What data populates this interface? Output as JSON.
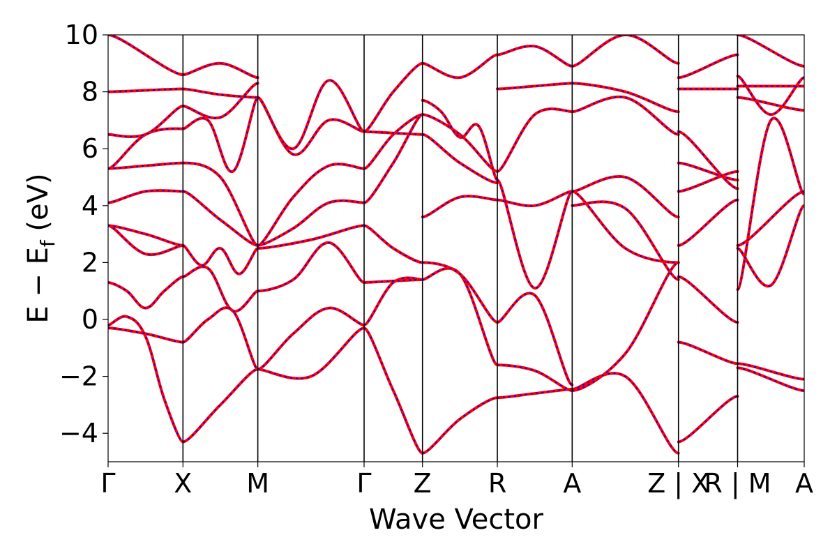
{
  "chart_data": {
    "type": "line",
    "title": "",
    "xlabel": "Wave Vector",
    "ylabel": "E − E_f (eV)",
    "ylabel_parts": {
      "main": "E − E",
      "sub": "f",
      "unit": " (eV)"
    },
    "ylim": [
      -5,
      10
    ],
    "yticks": [
      -4,
      -2,
      0,
      2,
      4,
      6,
      8,
      10
    ],
    "ytick_labels": [
      "−4",
      "−2",
      "0",
      "2",
      "4",
      "6",
      "8",
      "10"
    ],
    "xlim": [
      0,
      9.3
    ],
    "kpoints": [
      {
        "x": 0.0,
        "label": "Γ"
      },
      {
        "x": 1.0,
        "label": "X"
      },
      {
        "x": 2.0,
        "label": "M"
      },
      {
        "x": 3.42,
        "label": "Γ"
      },
      {
        "x": 4.2,
        "label": "Z"
      },
      {
        "x": 5.2,
        "label": "R"
      },
      {
        "x": 6.2,
        "label": "A"
      },
      {
        "x": 7.62,
        "label": "Z | X"
      },
      {
        "x": 8.41,
        "label": "R | M"
      },
      {
        "x": 9.3,
        "label": "A"
      }
    ],
    "x_tick_labels": [
      "Γ",
      "X",
      "M",
      "Γ",
      "Z",
      "R",
      "A",
      "Z | X",
      "R | M",
      "A"
    ],
    "grid": false,
    "legend": "none",
    "series_styles": [
      {
        "color": "#ff0000",
        "dash": "solid",
        "width": 4
      },
      {
        "color": "#0000ff",
        "dash": "dashed",
        "width": 2
      }
    ],
    "segments": [
      {
        "x_range": [
          0.0,
          1.0
        ],
        "bands": [
          [
            -0.3,
            -0.5,
            -0.8
          ],
          [
            -0.2,
            0.1,
            -0.6,
            -2.8,
            -4.3
          ],
          [
            1.3,
            1.0,
            0.4,
            1.0,
            1.5
          ],
          [
            3.3,
            2.3,
            2.6
          ],
          [
            3.3,
            3.0,
            2.6
          ],
          [
            4.1,
            4.5,
            4.5
          ],
          [
            5.3,
            5.4,
            5.5
          ],
          [
            5.3,
            6.5,
            6.7
          ],
          [
            6.5,
            6.5,
            7.5
          ],
          [
            8.0,
            8.1
          ],
          [
            10.0,
            8.6
          ]
        ]
      },
      {
        "x_range": [
          1.0,
          2.0
        ],
        "bands": [
          [
            -4.3,
            -3.0,
            -1.75
          ],
          [
            -0.8,
            0.0,
            0.3,
            -1.75
          ],
          [
            1.5,
            1.8,
            0.3,
            1.0
          ],
          [
            2.6,
            1.9,
            2.5,
            1.6,
            2.5
          ],
          [
            4.5,
            3.5,
            2.6
          ],
          [
            5.5,
            5.0,
            2.6
          ],
          [
            6.7,
            7.0,
            5.2,
            7.8
          ],
          [
            7.5,
            7.1,
            8.3
          ],
          [
            8.1,
            7.9,
            7.8
          ],
          [
            8.6,
            9.0,
            8.5
          ]
        ]
      },
      {
        "x_range": [
          2.0,
          3.42
        ],
        "bands": [
          [
            -1.75,
            -2.0,
            -0.3
          ],
          [
            -1.75,
            -0.5,
            0.4,
            -0.2
          ],
          [
            1.0,
            1.4,
            2.7,
            1.3
          ],
          [
            2.5,
            2.8,
            3.3
          ],
          [
            2.6,
            3.2,
            4.1,
            4.1
          ],
          [
            2.6,
            4.3,
            5.4,
            5.3
          ],
          [
            7.8,
            5.8,
            7.0,
            6.6
          ],
          [
            7.8,
            6.0,
            8.4,
            6.6
          ]
        ]
      },
      {
        "x_range": [
          3.42,
          4.2
        ],
        "bands": [
          [
            -0.3,
            -2.5,
            -4.7
          ],
          [
            -0.2,
            1.3,
            1.4
          ],
          [
            1.3,
            1.35,
            1.4
          ],
          [
            3.3,
            2.5,
            2.0
          ],
          [
            4.1,
            5.5,
            7.2
          ],
          [
            5.3,
            6.5,
            7.2
          ],
          [
            6.6,
            6.55,
            6.5
          ],
          [
            6.6,
            8.0,
            9.0
          ]
        ]
      },
      {
        "x_range": [
          4.2,
          5.2
        ],
        "bands": [
          [
            -4.7,
            -3.5,
            -2.75
          ],
          [
            1.4,
            1.6,
            -1.6
          ],
          [
            2.0,
            1.6,
            -0.1
          ],
          [
            3.6,
            4.3,
            4.2
          ],
          [
            6.5,
            5.5,
            4.8
          ],
          [
            7.2,
            6.5,
            5.2
          ],
          [
            7.7,
            7.3,
            6.4,
            6.8,
            4.9
          ],
          [
            9.0,
            8.5,
            9.3
          ]
        ]
      },
      {
        "x_range": [
          5.2,
          6.2
        ],
        "bands": [
          [
            -2.75,
            -2.6,
            -2.45
          ],
          [
            -1.6,
            -1.8,
            -2.5
          ],
          [
            -0.1,
            0.85,
            -2.3
          ],
          [
            4.2,
            4.0,
            4.5
          ],
          [
            4.9,
            1.1,
            4.5
          ],
          [
            5.2,
            7.2,
            7.3
          ],
          [
            8.1,
            8.2,
            8.3
          ],
          [
            9.3,
            9.6,
            8.9
          ]
        ]
      },
      {
        "x_range": [
          6.2,
          7.62
        ],
        "bands": [
          [
            -2.45,
            -2.0,
            -4.7
          ],
          [
            -2.5,
            -1.2,
            2.0
          ],
          [
            4.5,
            2.5,
            2.0
          ],
          [
            4.5,
            5.0,
            3.6
          ],
          [
            4.0,
            3.9,
            1.4
          ],
          [
            7.3,
            7.8,
            6.5
          ],
          [
            8.3,
            8.0,
            7.3
          ],
          [
            8.9,
            10.0,
            9.0
          ]
        ]
      },
      {
        "x_range": [
          7.62,
          8.41
        ],
        "bands": [
          [
            -4.3,
            -2.7
          ],
          [
            -0.8,
            -1.55
          ],
          [
            1.5,
            -0.1
          ],
          [
            2.6,
            4.2
          ],
          [
            4.5,
            5.2
          ],
          [
            5.5,
            4.9
          ],
          [
            6.6,
            4.6
          ],
          [
            8.1,
            8.1
          ],
          [
            8.5,
            9.3
          ]
        ]
      },
      {
        "x_range": [
          8.41,
          9.3
        ],
        "bands": [
          [
            -1.7,
            -2.5
          ],
          [
            -1.55,
            -2.1
          ],
          [
            1.05,
            7.0,
            4.4
          ],
          [
            2.5,
            1.2,
            4.0
          ],
          [
            2.6,
            4.5
          ],
          [
            7.8,
            7.35
          ],
          [
            8.2,
            8.2
          ],
          [
            8.55,
            7.2,
            8.5
          ],
          [
            10.0,
            8.9
          ]
        ]
      }
    ]
  }
}
